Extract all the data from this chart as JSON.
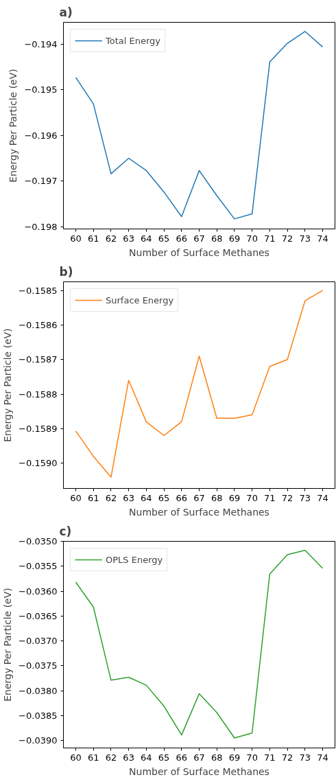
{
  "chart_data": [
    {
      "type": "line",
      "annotations": [
        "a)"
      ],
      "xlabel": "Number of Surface Methanes",
      "ylabel": "Energy Per Particle (eV)",
      "x": [
        60,
        61,
        62,
        63,
        64,
        65,
        66,
        67,
        68,
        69,
        70,
        71,
        72,
        73,
        74
      ],
      "series": [
        {
          "name": "Total Energy",
          "color": "#1f77b4",
          "values": [
            -0.19473,
            -0.19531,
            -0.19684,
            -0.1965,
            -0.19677,
            -0.19724,
            -0.19778,
            -0.19677,
            -0.19732,
            -0.19783,
            -0.19772,
            -0.19439,
            -0.19398,
            -0.19372,
            -0.19406
          ]
        }
      ],
      "xlim": [
        59.3,
        74.7
      ],
      "ylim": [
        -0.19805,
        -0.19352
      ],
      "xticks": [
        60,
        61,
        62,
        63,
        64,
        65,
        66,
        67,
        68,
        69,
        70,
        71,
        72,
        73,
        74
      ],
      "yticks": [
        {
          "value": -0.198,
          "label": "−0.198"
        },
        {
          "value": -0.197,
          "label": "−0.197"
        },
        {
          "value": -0.196,
          "label": "−0.196"
        },
        {
          "value": -0.195,
          "label": "−0.195"
        },
        {
          "value": -0.194,
          "label": "−0.194"
        }
      ],
      "legend": "top left",
      "grid": false
    },
    {
      "type": "line",
      "annotations": [
        "b)"
      ],
      "xlabel": "Number of Surface Methanes",
      "ylabel": "Energy Per Particle (eV)",
      "x": [
        60,
        61,
        62,
        63,
        64,
        65,
        66,
        67,
        68,
        69,
        70,
        71,
        72,
        73,
        74
      ],
      "series": [
        {
          "name": "Surface Energy",
          "color": "#ff7f0e",
          "values": [
            -0.158907,
            -0.15898,
            -0.15904,
            -0.15876,
            -0.15888,
            -0.15892,
            -0.15888,
            -0.15869,
            -0.15887,
            -0.15887,
            -0.15886,
            -0.15872,
            -0.1587,
            -0.15853,
            -0.1585
          ]
        }
      ],
      "xlim": [
        59.3,
        74.7
      ],
      "ylim": [
        -0.159073,
        -0.158475
      ],
      "xticks": [
        60,
        61,
        62,
        63,
        64,
        65,
        66,
        67,
        68,
        69,
        70,
        71,
        72,
        73,
        74
      ],
      "yticks": [
        {
          "value": -0.159,
          "label": "−0.1590"
        },
        {
          "value": -0.1589,
          "label": "−0.1589"
        },
        {
          "value": -0.1588,
          "label": "−0.1588"
        },
        {
          "value": -0.1587,
          "label": "−0.1587"
        },
        {
          "value": -0.1586,
          "label": "−0.1586"
        },
        {
          "value": -0.1585,
          "label": "−0.1585"
        }
      ],
      "legend": "top left",
      "grid": false
    },
    {
      "type": "line",
      "annotations": [
        "c)"
      ],
      "xlabel": "Number of Surface Methanes",
      "ylabel": "Energy Per Particle (eV)",
      "x": [
        60,
        61,
        62,
        63,
        64,
        65,
        66,
        67,
        68,
        69,
        70,
        71,
        72,
        73,
        74
      ],
      "series": [
        {
          "name": "OPLS Energy",
          "color": "#2ca02c",
          "values": [
            -0.03582,
            -0.03632,
            -0.03779,
            -0.03773,
            -0.03789,
            -0.03831,
            -0.03889,
            -0.03806,
            -0.03844,
            -0.03895,
            -0.03885,
            -0.03566,
            -0.03527,
            -0.03518,
            -0.03554
          ]
        }
      ],
      "xlim": [
        59.3,
        74.7
      ],
      "ylim": [
        -0.03915,
        -0.035
      ],
      "xticks": [
        60,
        61,
        62,
        63,
        64,
        65,
        66,
        67,
        68,
        69,
        70,
        71,
        72,
        73,
        74
      ],
      "yticks": [
        {
          "value": -0.039,
          "label": "−0.0390"
        },
        {
          "value": -0.0385,
          "label": "−0.0385"
        },
        {
          "value": -0.038,
          "label": "−0.0380"
        },
        {
          "value": -0.0375,
          "label": "−0.0375"
        },
        {
          "value": -0.037,
          "label": "−0.0370"
        },
        {
          "value": -0.0365,
          "label": "−0.0365"
        },
        {
          "value": -0.036,
          "label": "−0.0360"
        },
        {
          "value": -0.0355,
          "label": "−0.0355"
        },
        {
          "value": -0.035,
          "label": "−0.0350"
        }
      ],
      "legend": "top left",
      "grid": false
    }
  ]
}
